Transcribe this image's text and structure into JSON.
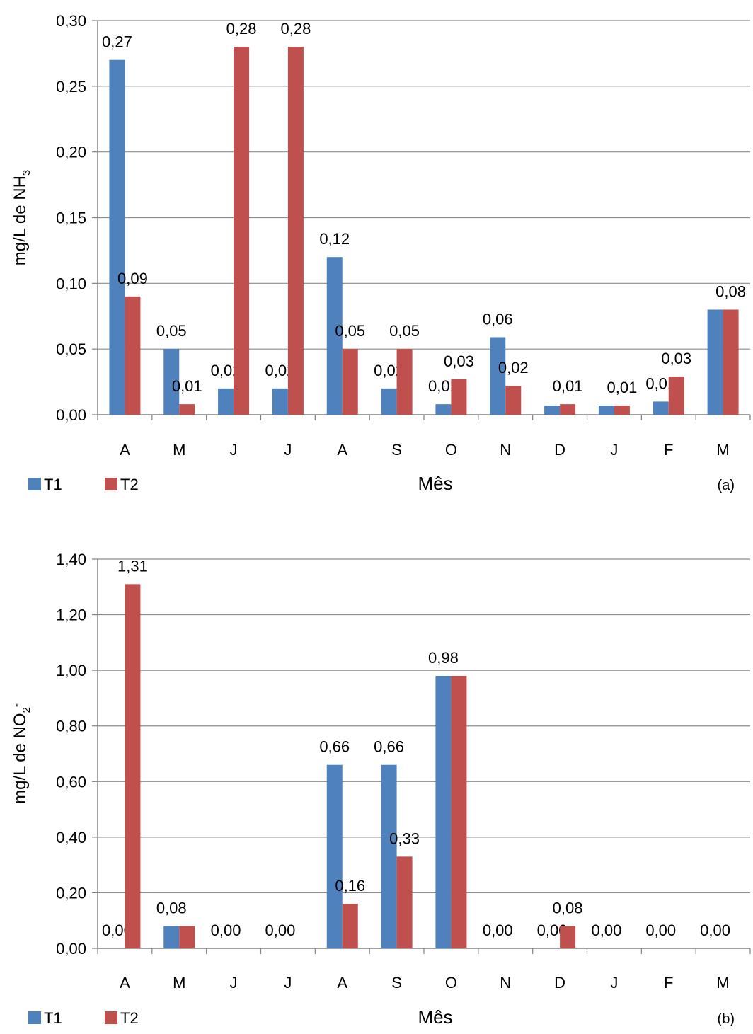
{
  "colors": {
    "T1": "#4F81BD",
    "T2": "#C0504D",
    "grid": "#8c8c8c",
    "axis": "#808080"
  },
  "chart_data": [
    {
      "type": "bar",
      "panel_label": "(a)",
      "ylabel": "mg/L de NH",
      "ylabel_sub": "3",
      "ylabel_sup": "",
      "xlabel": "Mês",
      "categories": [
        "A",
        "M",
        "J",
        "J",
        "A",
        "S",
        "O",
        "N",
        "D",
        "J",
        "F",
        "M"
      ],
      "ylim": [
        0,
        0.3
      ],
      "yticks": [
        0,
        0.05,
        0.1,
        0.15,
        0.2,
        0.25,
        0.3
      ],
      "ytick_labels": [
        "0,00",
        "0,05",
        "0,10",
        "0,15",
        "0,20",
        "0,25",
        "0,30"
      ],
      "grid": true,
      "legend_position": "bottom-left",
      "series": [
        {
          "name": "T1",
          "color": "#4F81BD",
          "values": [
            0.27,
            0.05,
            0.02,
            0.02,
            0.12,
            0.02,
            0.008,
            0.059,
            0.007,
            0.007,
            0.01,
            0.08
          ],
          "labels": [
            "0,27",
            "0,05",
            "0,02",
            "0,02",
            "0,12",
            "0,02",
            "0,01",
            "0,06",
            "",
            "",
            "0,01",
            ""
          ]
        },
        {
          "name": "T2",
          "color": "#C0504D",
          "values": [
            0.09,
            0.008,
            0.28,
            0.28,
            0.05,
            0.05,
            0.027,
            0.022,
            0.008,
            0.007,
            0.029,
            0.08
          ],
          "labels": [
            "0,09",
            "0,01",
            "0,28",
            "0,28",
            "0,05",
            "0,05",
            "0,03",
            "0,02",
            "0,01",
            "0,01",
            "0,03",
            "0,08"
          ]
        }
      ]
    },
    {
      "type": "bar",
      "panel_label": "(b)",
      "ylabel": "mg/L de NO",
      "ylabel_sub": "2",
      "ylabel_sup": "-",
      "xlabel": "Mês",
      "categories": [
        "A",
        "M",
        "J",
        "J",
        "A",
        "S",
        "O",
        "N",
        "D",
        "J",
        "F",
        "M"
      ],
      "ylim": [
        0,
        1.4
      ],
      "yticks": [
        0,
        0.2,
        0.4,
        0.6,
        0.8,
        1.0,
        1.2,
        1.4
      ],
      "ytick_labels": [
        "0,00",
        "0,20",
        "0,40",
        "0,60",
        "0,80",
        "1,00",
        "1,20",
        "1,40"
      ],
      "grid": true,
      "legend_position": "bottom-left",
      "series": [
        {
          "name": "T1",
          "color": "#4F81BD",
          "values": [
            0,
            0.08,
            0,
            0,
            0.66,
            0.66,
            0.98,
            0,
            0,
            0,
            0,
            0
          ],
          "labels": [
            "0,00",
            "0,08",
            "0,00",
            "0,00",
            "0,66",
            "0,66",
            "0,98",
            "0,00",
            "0,00",
            "0,00",
            "0,00",
            "0,00"
          ]
        },
        {
          "name": "T2",
          "color": "#C0504D",
          "values": [
            1.31,
            0.08,
            0,
            0,
            0.16,
            0.33,
            0.98,
            0,
            0.08,
            0,
            0,
            0
          ],
          "labels": [
            "1,31",
            "",
            "",
            "",
            "0,16",
            "0,33",
            "",
            "",
            "0,08",
            "",
            "",
            ""
          ]
        }
      ]
    }
  ]
}
